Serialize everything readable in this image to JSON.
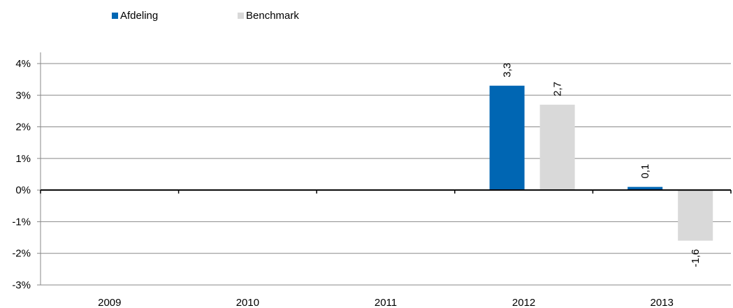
{
  "chart_data": {
    "type": "bar",
    "categories": [
      "2009",
      "2010",
      "2011",
      "2012",
      "2013"
    ],
    "series": [
      {
        "name": "Afdeling",
        "color": "#0066b3",
        "values": [
          null,
          null,
          null,
          3.3,
          0.1
        ],
        "labels": [
          null,
          null,
          null,
          "3,3",
          "0,1"
        ]
      },
      {
        "name": "Benchmark",
        "color": "#d9d9d9",
        "values": [
          null,
          null,
          null,
          2.7,
          -1.6
        ],
        "labels": [
          null,
          null,
          null,
          "2,7",
          "-1,6"
        ]
      }
    ],
    "ylim": [
      -3,
      4
    ],
    "yticks": [
      {
        "value": 4,
        "label": "4%"
      },
      {
        "value": 3,
        "label": "3%"
      },
      {
        "value": 2,
        "label": "2%"
      },
      {
        "value": 1,
        "label": "1%"
      },
      {
        "value": 0,
        "label": "0%"
      },
      {
        "value": -1,
        "label": "-1%"
      },
      {
        "value": -2,
        "label": "-2%"
      },
      {
        "value": -3,
        "label": "-3%"
      }
    ],
    "grid": true,
    "legend_position": "top-left",
    "title": "",
    "xlabel": "",
    "ylabel": ""
  }
}
